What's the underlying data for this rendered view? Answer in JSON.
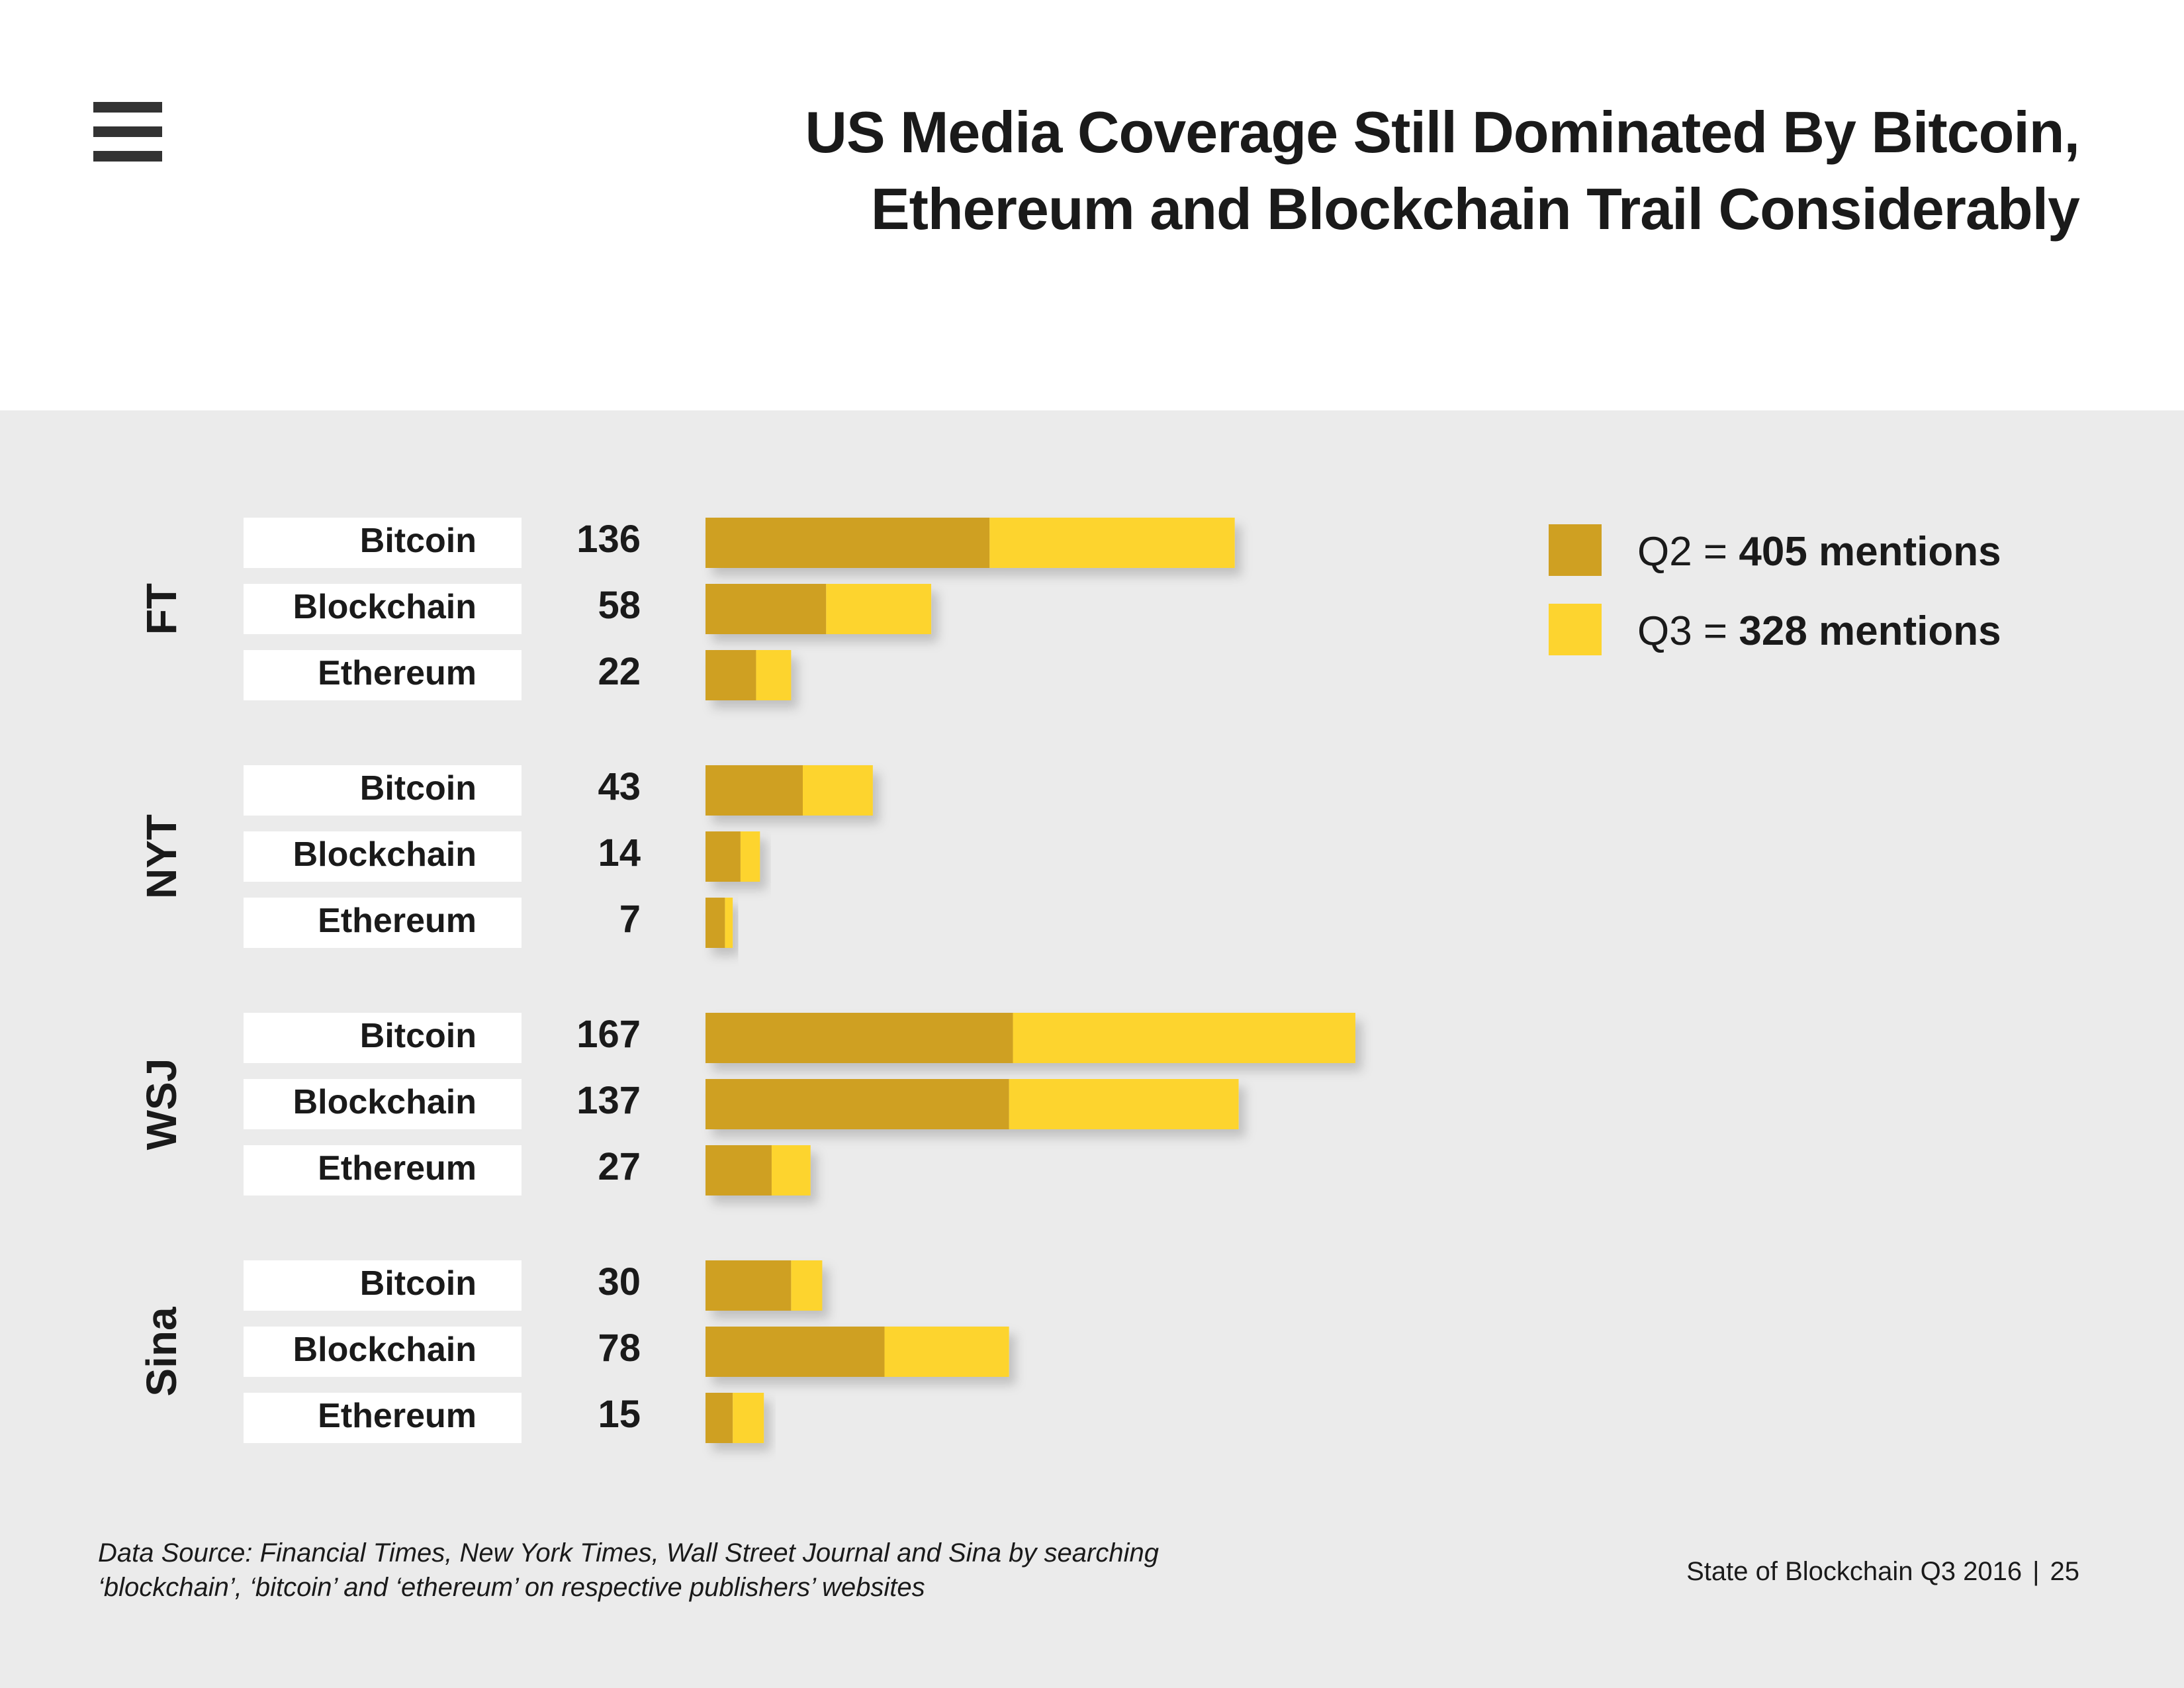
{
  "header": {
    "title_line1": "US Media Coverage Still Dominated By Bitcoin,",
    "title_line2": "Ethereum and Blockchain Trail Considerably"
  },
  "icons": {
    "menu": "hamburger-menu-icon"
  },
  "colors": {
    "q2": "#CFA022",
    "q3": "#FDD42F",
    "panel": "#EBEBEB",
    "label_bg": "#FFFFFF",
    "text": "#1A1A1A"
  },
  "chart_data": {
    "type": "bar",
    "orientation": "horizontal",
    "stacked": true,
    "title": "US Media Coverage Still Dominated By Bitcoin, Ethereum and Blockchain Trail Considerably",
    "groups": [
      {
        "name": "FT",
        "items": [
          {
            "label": "Bitcoin",
            "total": 136,
            "q2": 73,
            "q3": 63
          },
          {
            "label": "Blockchain",
            "total": 58,
            "q2": 31,
            "q3": 27
          },
          {
            "label": "Ethereum",
            "total": 22,
            "q2": 13,
            "q3": 9
          }
        ]
      },
      {
        "name": "NYT",
        "items": [
          {
            "label": "Bitcoin",
            "total": 43,
            "q2": 25,
            "q3": 18
          },
          {
            "label": "Blockchain",
            "total": 14,
            "q2": 9,
            "q3": 5
          },
          {
            "label": "Ethereum",
            "total": 7,
            "q2": 5,
            "q3": 2
          }
        ]
      },
      {
        "name": "WSJ",
        "items": [
          {
            "label": "Bitcoin",
            "total": 167,
            "q2": 79,
            "q3": 88
          },
          {
            "label": "Blockchain",
            "total": 137,
            "q2": 78,
            "q3": 59
          },
          {
            "label": "Ethereum",
            "total": 27,
            "q2": 17,
            "q3": 10
          }
        ]
      },
      {
        "name": "Sina",
        "items": [
          {
            "label": "Bitcoin",
            "total": 30,
            "q2": 22,
            "q3": 8
          },
          {
            "label": "Blockchain",
            "total": 78,
            "q2": 46,
            "q3": 32
          },
          {
            "label": "Ethereum",
            "total": 15,
            "q2": 7,
            "q3": 8
          }
        ]
      }
    ],
    "series": [
      {
        "name": "Q2",
        "prefix": "Q2 = ",
        "summary": "405 mentions"
      },
      {
        "name": "Q3",
        "prefix": "Q3 = ",
        "summary": "328 mentions"
      }
    ],
    "legend_position": "top-right",
    "xlim": [
      0,
      167
    ]
  },
  "footer": {
    "source_line1": "Data Source: Financial Times, New York Times, Wall Street Journal and Sina by searching",
    "source_line2": "‘blockchain’, ‘bitcoin’ and ‘ethereum’ on respective publishers’ websites",
    "publication": "State of Blockchain Q3 2016",
    "separator": "|",
    "page_number": "25"
  }
}
